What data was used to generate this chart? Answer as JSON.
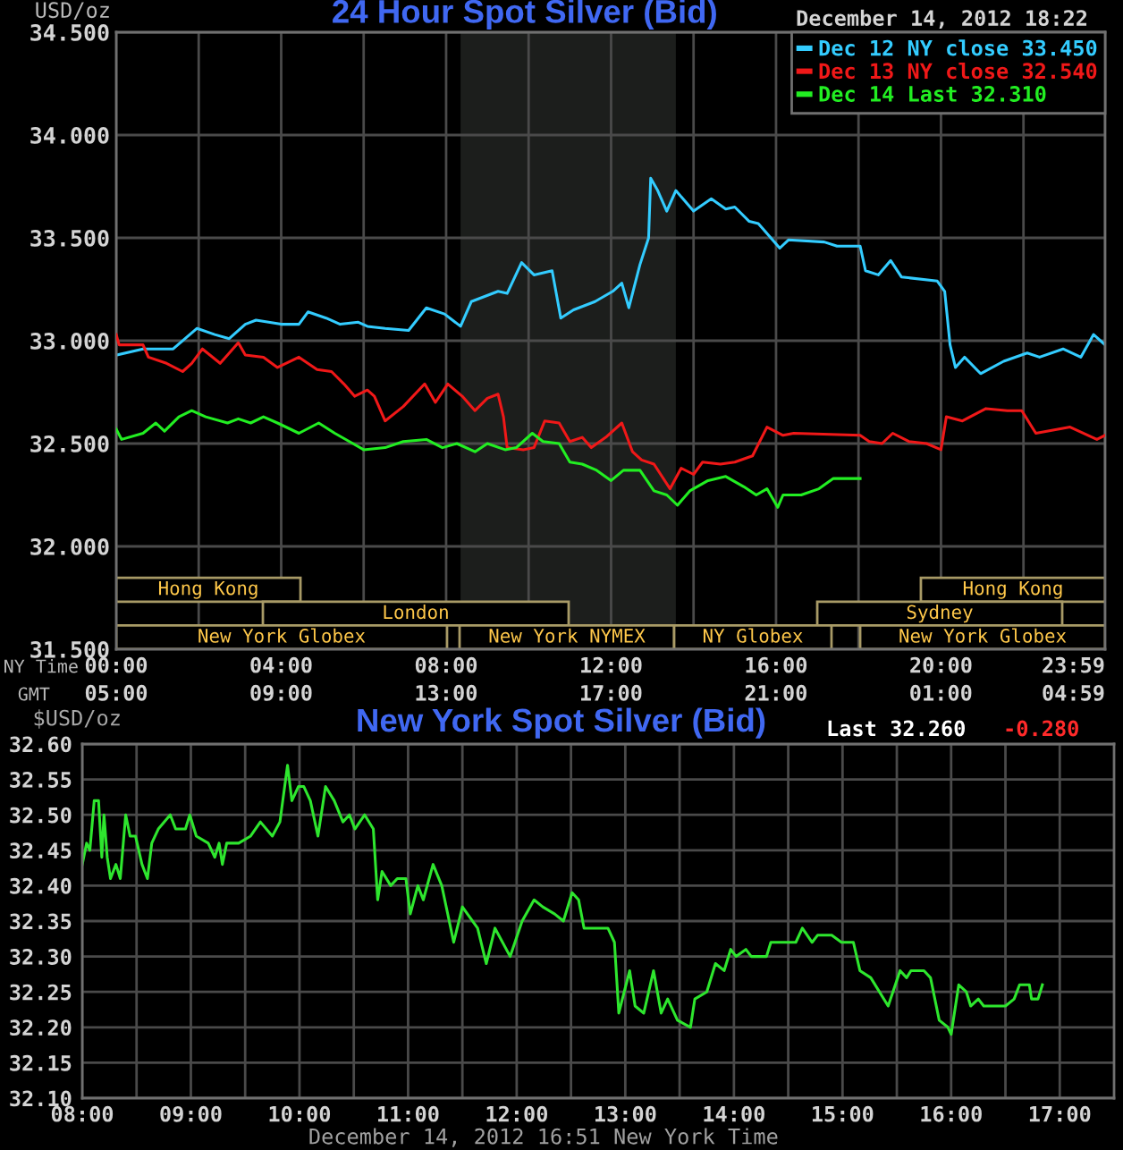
{
  "chart_data": [
    {
      "type": "line",
      "title": "24 Hour Spot Silver (Bid)",
      "ylabel": "USD/oz",
      "xlabel": "NY Time",
      "x2label": "GMT",
      "annotations": [
        "December 14, 2012 18:22",
        "Hong Kong",
        "Hong Kong",
        "London",
        "Sydney",
        "New York Globex",
        "New York NYMEX",
        "NY Globex",
        "New York Globex"
      ],
      "xlim": [
        0,
        23.98
      ],
      "xticks": [
        {
          "value": 0,
          "label": "00:00"
        },
        {
          "value": 2,
          "label": null
        },
        {
          "value": 4,
          "label": "04:00"
        },
        {
          "value": 6,
          "label": null
        },
        {
          "value": 8,
          "label": "08:00"
        },
        {
          "value": 10,
          "label": null
        },
        {
          "value": 12,
          "label": "12:00"
        },
        {
          "value": 14,
          "label": null
        },
        {
          "value": 16,
          "label": "16:00"
        },
        {
          "value": 18,
          "label": null
        },
        {
          "value": 20,
          "label": "20:00"
        },
        {
          "value": 22,
          "label": null
        },
        {
          "value": 23.98,
          "label": "23:59"
        }
      ],
      "x2lim": [
        "2012-12-14T05:00",
        "2012-12-15T04:59"
      ],
      "x2ticks": [
        {
          "value": "2012-12-14T05:00",
          "label": "05:00"
        },
        {
          "value": "2012-12-14T09:00",
          "label": "09:00"
        },
        {
          "value": "2012-12-14T13:00",
          "label": "13:00"
        },
        {
          "value": "2012-12-14T17:00",
          "label": "17:00"
        },
        {
          "value": "2012-12-14T21:00",
          "label": "21:00"
        },
        {
          "value": "2012-12-15T01:00",
          "label": "01:00"
        },
        {
          "value": "2012-12-15T04:59",
          "label": "04:59"
        }
      ],
      "ylim": [
        31.5,
        34.5
      ],
      "yticks": [
        {
          "value": 31.5,
          "label": "31.500"
        },
        {
          "value": 32,
          "label": "32.000"
        },
        {
          "value": 32.5,
          "label": "32.500"
        },
        {
          "value": 33,
          "label": "33.000"
        },
        {
          "value": 33.5,
          "label": "33.500"
        },
        {
          "value": 34,
          "label": "34.000"
        },
        {
          "value": 34.5,
          "label": "34.500"
        }
      ],
      "grid": true,
      "legend": "top right",
      "bands": [
        {
          "axis": "x",
          "from": 8.35,
          "to": 13.57,
          "color": "#1c1e1c"
        }
      ],
      "series": [
        {
          "name": "Dec 12 NY close 33.450",
          "color": "#33ccff",
          "x": [
            0,
            0.65,
            1.38,
            1.96,
            2.39,
            2.74,
            3.13,
            3.39,
            4.0,
            4.43,
            4.65,
            5.09,
            5.43,
            5.87,
            6.09,
            6.52,
            7.09,
            7.52,
            7.96,
            8.35,
            8.61,
            9.26,
            9.48,
            9.83,
            10.13,
            10.57,
            10.78,
            11.09,
            11.61,
            12.04,
            12.26,
            12.43,
            12.7,
            12.91,
            12.96,
            13.13,
            13.35,
            13.57,
            14.0,
            14.43,
            14.78,
            15.0,
            15.35,
            15.57,
            16.09,
            16.3,
            17.17,
            17.48,
            18.04,
            18.17,
            18.48,
            18.78,
            19.04,
            19.91,
            20.09,
            20.22,
            20.35,
            20.57,
            20.96,
            21.52,
            22.09,
            22.39,
            22.96,
            23.39,
            23.7,
            23.98
          ],
          "values": [
            32.93,
            32.96,
            32.96,
            33.06,
            33.03,
            33.01,
            33.08,
            33.1,
            33.08,
            33.08,
            33.14,
            33.11,
            33.08,
            33.09,
            33.07,
            33.06,
            33.05,
            33.16,
            33.13,
            33.07,
            33.19,
            33.24,
            33.23,
            33.38,
            33.32,
            33.34,
            33.11,
            33.15,
            33.19,
            33.24,
            33.28,
            33.16,
            33.37,
            33.5,
            33.79,
            33.73,
            33.63,
            33.73,
            33.63,
            33.69,
            33.64,
            33.65,
            33.58,
            33.57,
            33.45,
            33.49,
            33.48,
            33.46,
            33.46,
            33.34,
            33.32,
            33.39,
            33.31,
            33.29,
            33.24,
            32.98,
            32.87,
            32.92,
            32.84,
            32.9,
            32.94,
            32.92,
            32.96,
            32.92,
            33.03,
            32.98
          ]
        },
        {
          "name": "Dec 13 NY close 32.540",
          "color": "#f01818",
          "x": [
            0,
            0.07,
            0.65,
            0.78,
            1.22,
            1.61,
            1.83,
            2.09,
            2.52,
            2.96,
            3.13,
            3.57,
            3.91,
            4.43,
            4.87,
            5.22,
            5.52,
            5.78,
            6.09,
            6.26,
            6.52,
            6.96,
            7.48,
            7.74,
            8.04,
            8.39,
            8.7,
            9.0,
            9.26,
            9.39,
            9.48,
            9.87,
            10.13,
            10.39,
            10.74,
            11.0,
            11.3,
            11.52,
            11.87,
            12.26,
            12.52,
            12.74,
            13.04,
            13.43,
            13.7,
            14.0,
            14.22,
            14.65,
            15.0,
            15.43,
            15.78,
            16.17,
            16.43,
            18.04,
            18.26,
            18.57,
            18.83,
            19.22,
            19.65,
            20.0,
            20.13,
            20.52,
            21.09,
            21.61,
            21.96,
            22.3,
            23.13,
            23.78,
            23.98
          ],
          "values": [
            33.03,
            32.98,
            32.98,
            32.92,
            32.89,
            32.85,
            32.89,
            32.96,
            32.89,
            32.99,
            32.93,
            32.92,
            32.87,
            32.92,
            32.86,
            32.85,
            32.79,
            32.73,
            32.76,
            32.73,
            32.61,
            32.68,
            32.79,
            32.7,
            32.79,
            32.73,
            32.66,
            32.72,
            32.74,
            32.63,
            32.48,
            32.47,
            32.48,
            32.61,
            32.6,
            32.51,
            32.53,
            32.48,
            32.53,
            32.6,
            32.46,
            32.42,
            32.4,
            32.28,
            32.38,
            32.35,
            32.41,
            32.4,
            32.41,
            32.44,
            32.58,
            32.54,
            32.55,
            32.54,
            32.51,
            32.5,
            32.55,
            32.51,
            32.5,
            32.47,
            32.63,
            32.61,
            32.67,
            32.66,
            32.66,
            32.55,
            32.58,
            32.52,
            32.54
          ]
        },
        {
          "name": "Dec 14 Last 32.310",
          "color": "#22ee22",
          "x": [
            0,
            0.13,
            0.65,
            0.96,
            1.17,
            1.52,
            1.83,
            2.17,
            2.7,
            2.96,
            3.26,
            3.57,
            3.91,
            4.43,
            4.91,
            5.3,
            5.74,
            6.0,
            6.52,
            6.96,
            7.52,
            7.91,
            8.26,
            8.7,
            9.0,
            9.43,
            9.7,
            10.09,
            10.35,
            10.74,
            11.0,
            11.3,
            11.65,
            12.0,
            12.3,
            12.7,
            13.04,
            13.35,
            13.61,
            13.91,
            14.35,
            14.78,
            15.22,
            15.52,
            15.78,
            16.04,
            16.17,
            16.61,
            17.04,
            17.39,
            18.04
          ],
          "values": [
            32.57,
            32.52,
            32.55,
            32.6,
            32.56,
            32.63,
            32.66,
            32.63,
            32.6,
            32.62,
            32.6,
            32.63,
            32.6,
            32.55,
            32.6,
            32.55,
            32.5,
            32.47,
            32.48,
            32.51,
            32.52,
            32.48,
            32.5,
            32.46,
            32.5,
            32.47,
            32.48,
            32.55,
            32.51,
            32.5,
            32.41,
            32.4,
            32.37,
            32.32,
            32.37,
            32.37,
            32.27,
            32.25,
            32.2,
            32.27,
            32.32,
            32.34,
            32.29,
            32.25,
            32.28,
            32.19,
            32.25,
            32.25,
            32.28,
            32.33,
            32.33
          ]
        }
      ]
    },
    {
      "type": "line",
      "title": "New York Spot Silver (Bid)",
      "ylabel": "$USD/oz",
      "xlabel": "December 14, 2012 16:51 New York Time",
      "annotations": [
        "Last 32.260",
        "-0.280"
      ],
      "xlim": [
        8,
        17.5
      ],
      "xticks": [
        {
          "value": 8,
          "label": "08:00"
        },
        {
          "value": 8.5,
          "label": null
        },
        {
          "value": 9,
          "label": "09:00"
        },
        {
          "value": 9.5,
          "label": null
        },
        {
          "value": 10,
          "label": "10:00"
        },
        {
          "value": 10.5,
          "label": null
        },
        {
          "value": 11,
          "label": "11:00"
        },
        {
          "value": 11.5,
          "label": null
        },
        {
          "value": 12,
          "label": "12:00"
        },
        {
          "value": 12.5,
          "label": null
        },
        {
          "value": 13,
          "label": "13:00"
        },
        {
          "value": 13.5,
          "label": null
        },
        {
          "value": 14,
          "label": "14:00"
        },
        {
          "value": 14.5,
          "label": null
        },
        {
          "value": 15,
          "label": "15:00"
        },
        {
          "value": 15.5,
          "label": null
        },
        {
          "value": 16,
          "label": "16:00"
        },
        {
          "value": 16.5,
          "label": null
        },
        {
          "value": 17,
          "label": "17:00"
        }
      ],
      "ylim": [
        32.1,
        32.6
      ],
      "yticks": [
        {
          "value": 32.1,
          "label": "32.10"
        },
        {
          "value": 32.15,
          "label": "32.15"
        },
        {
          "value": 32.2,
          "label": "32.20"
        },
        {
          "value": 32.25,
          "label": "32.25"
        },
        {
          "value": 32.3,
          "label": "32.30"
        },
        {
          "value": 32.35,
          "label": "32.35"
        },
        {
          "value": 32.4,
          "label": "32.40"
        },
        {
          "value": 32.45,
          "label": "32.45"
        },
        {
          "value": 32.5,
          "label": "32.50"
        },
        {
          "value": 32.55,
          "label": "32.55"
        },
        {
          "value": 32.6,
          "label": "32.60"
        }
      ],
      "grid": true,
      "series": [
        {
          "color": "#2ee62e",
          "x": [
            8.0,
            8.04,
            8.07,
            8.11,
            8.15,
            8.18,
            8.2,
            8.23,
            8.26,
            8.31,
            8.35,
            8.4,
            8.44,
            8.49,
            8.55,
            8.6,
            8.64,
            8.7,
            8.81,
            8.86,
            8.95,
            8.99,
            9.05,
            9.16,
            9.22,
            9.26,
            9.29,
            9.33,
            9.44,
            9.55,
            9.64,
            9.75,
            9.82,
            9.89,
            9.93,
            9.99,
            10.04,
            10.1,
            10.17,
            10.24,
            10.32,
            10.4,
            10.46,
            10.51,
            10.6,
            10.68,
            10.72,
            10.76,
            10.84,
            10.9,
            10.98,
            11.02,
            11.09,
            11.14,
            11.23,
            11.31,
            11.42,
            11.5,
            11.64,
            11.72,
            11.8,
            11.94,
            12.05,
            12.16,
            12.24,
            12.35,
            12.43,
            12.51,
            12.57,
            12.62,
            12.84,
            12.9,
            12.94,
            13.04,
            13.09,
            13.17,
            13.26,
            13.33,
            13.39,
            13.48,
            13.6,
            13.64,
            13.75,
            13.83,
            13.91,
            13.97,
            14.02,
            14.11,
            14.16,
            14.3,
            14.34,
            14.57,
            14.63,
            14.72,
            14.77,
            14.9,
            14.99,
            15.04,
            15.1,
            15.16,
            15.26,
            15.42,
            15.53,
            15.59,
            15.63,
            15.75,
            15.81,
            15.89,
            15.97,
            16.0,
            16.07,
            16.14,
            16.18,
            16.25,
            16.3,
            16.5,
            16.58,
            16.63,
            16.72,
            16.74,
            16.8,
            16.84
          ],
          "values": [
            32.43,
            32.46,
            32.45,
            32.52,
            32.52,
            32.44,
            32.5,
            32.44,
            32.41,
            32.43,
            32.41,
            32.5,
            32.47,
            32.47,
            32.43,
            32.41,
            32.46,
            32.48,
            32.5,
            32.48,
            32.48,
            32.5,
            32.47,
            32.46,
            32.44,
            32.46,
            32.43,
            32.46,
            32.46,
            32.47,
            32.49,
            32.47,
            32.49,
            32.57,
            32.52,
            32.54,
            32.54,
            32.52,
            32.47,
            32.54,
            32.52,
            32.49,
            32.5,
            32.48,
            32.5,
            32.48,
            32.38,
            32.42,
            32.4,
            32.41,
            32.41,
            32.36,
            32.4,
            32.38,
            32.43,
            32.4,
            32.32,
            32.37,
            32.34,
            32.29,
            32.34,
            32.3,
            32.35,
            32.38,
            32.37,
            32.36,
            32.35,
            32.39,
            32.38,
            32.34,
            32.34,
            32.32,
            32.22,
            32.28,
            32.23,
            32.22,
            32.28,
            32.22,
            32.24,
            32.21,
            32.2,
            32.24,
            32.25,
            32.29,
            32.28,
            32.31,
            32.3,
            32.31,
            32.3,
            32.3,
            32.32,
            32.32,
            32.34,
            32.32,
            32.33,
            32.33,
            32.32,
            32.32,
            32.32,
            32.28,
            32.27,
            32.23,
            32.28,
            32.27,
            32.28,
            32.28,
            32.27,
            32.21,
            32.2,
            32.19,
            32.26,
            32.25,
            32.23,
            32.24,
            32.23,
            32.23,
            32.24,
            32.26,
            32.26,
            32.24,
            32.24,
            32.26
          ]
        }
      ]
    }
  ]
}
